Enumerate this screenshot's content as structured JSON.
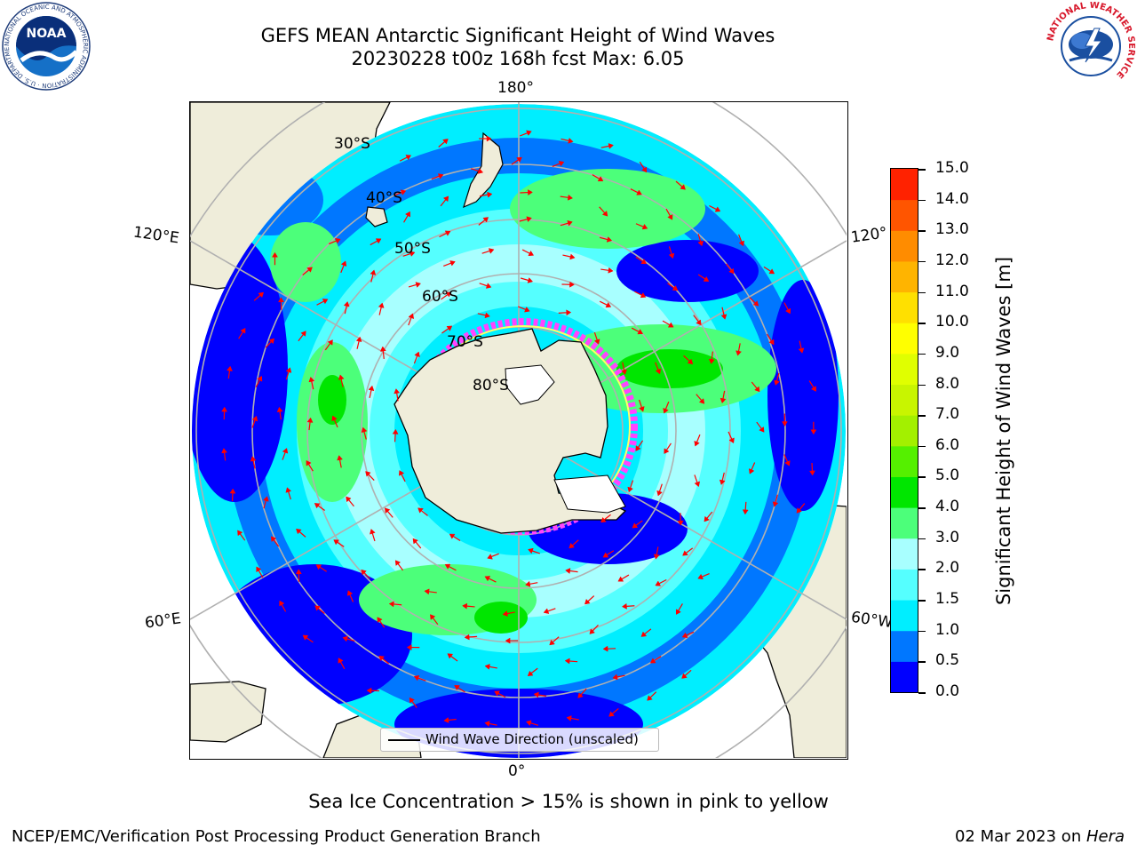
{
  "header": {
    "title_line1": "GEFS MEAN Antarctic Significant Height of Wind Waves",
    "title_line2": "20230228 t00z 168h fcst   Max: 6.05"
  },
  "logos": {
    "noaa_text": "NOAA",
    "noaa_ring_text": "NATIONAL OCEANIC AND ATMOSPHERIC ADMINISTRATION · U.S. DEPARTMENT OF COMMERCE",
    "nws_ring_text": "NATIONAL WEATHER SERVICE"
  },
  "map": {
    "longitude_labels": {
      "top": "180°",
      "bottom": "0°",
      "upper_left": "120°E",
      "upper_right": "120°",
      "lower_left": "60°E",
      "lower_right": "60°W"
    },
    "latitude_labels": [
      "30°S",
      "40°S",
      "50°S",
      "60°S",
      "70°S",
      "80°S"
    ],
    "legend_label": "Wind Wave Direction (unscaled)",
    "colors": {
      "land": "#efedda",
      "coast": "#000000",
      "grid": "#b0b0b0",
      "arrow": "#ff0000",
      "ice_pink": "#ff44ff",
      "ice_yellow": "#ffff66"
    }
  },
  "colorbar": {
    "label": "Significant Height of Wind Waves [m]",
    "ticks": [
      "15.0",
      "14.0",
      "13.0",
      "12.0",
      "11.0",
      "10.0",
      "9.0",
      "8.0",
      "7.0",
      "6.0",
      "5.0",
      "4.0",
      "3.0",
      "2.0",
      "1.5",
      "1.0",
      "0.5",
      "0.0"
    ],
    "colors": [
      "#0000ff",
      "#0077ff",
      "#00eeff",
      "#55ffff",
      "#a8ffff",
      "#4cff7a",
      "#00e600",
      "#55f000",
      "#a3f000",
      "#c8f500",
      "#e0ff00",
      "#ffff00",
      "#ffe000",
      "#ffb400",
      "#ff8c00",
      "#ff5500",
      "#ff2200"
    ]
  },
  "footnote": "Sea Ice Concentration > 15% is shown in pink to yellow",
  "footer": {
    "org": "NCEP/EMC/Verification Post Processing Product Generation Branch",
    "date": "02 Mar 2023 on ",
    "host": "Hera"
  }
}
